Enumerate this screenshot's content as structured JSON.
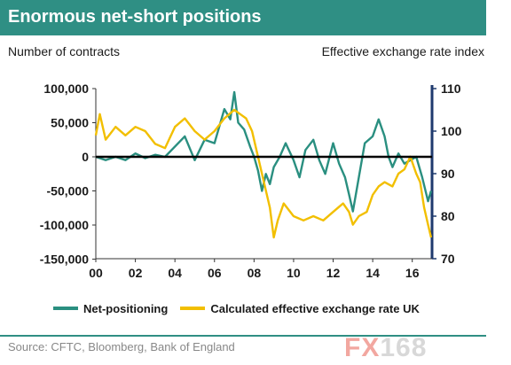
{
  "header": {
    "title": "Enormous net-short positions"
  },
  "chart_data": {
    "type": "line",
    "title": "Enormous net-short positions",
    "left_axis": {
      "label": "Number of contracts",
      "ticks": [
        100000,
        50000,
        0,
        -50000,
        -100000,
        -150000
      ],
      "tick_labels": [
        "100,000",
        "50,000",
        "0",
        "-50,000",
        "-100,000",
        "-150,000"
      ],
      "range": [
        -150000,
        110000
      ]
    },
    "right_axis": {
      "label": "Effective exchange rate index",
      "ticks": [
        110,
        100,
        90,
        80,
        70
      ],
      "tick_labels": [
        "110",
        "100",
        "90",
        "80",
        "70"
      ],
      "range": [
        70,
        110
      ]
    },
    "x_axis": {
      "tick_labels": [
        "00",
        "02",
        "04",
        "06",
        "08",
        "10",
        "12",
        "14",
        "16"
      ],
      "tick_years": [
        2000,
        2002,
        2004,
        2006,
        2008,
        2010,
        2012,
        2014,
        2016
      ],
      "range": [
        2000,
        2017
      ]
    },
    "zero_line": true,
    "grid": false,
    "series": [
      {
        "name": "Net-positioning",
        "axis": "left",
        "color": "#2a8f80",
        "points": [
          [
            2000.0,
            0
          ],
          [
            2000.5,
            -5000
          ],
          [
            2001.0,
            0
          ],
          [
            2001.5,
            -5000
          ],
          [
            2002.0,
            5000
          ],
          [
            2002.5,
            -2000
          ],
          [
            2003.0,
            3000
          ],
          [
            2003.5,
            0
          ],
          [
            2004.0,
            15000
          ],
          [
            2004.5,
            30000
          ],
          [
            2005.0,
            -5000
          ],
          [
            2005.5,
            25000
          ],
          [
            2006.0,
            20000
          ],
          [
            2006.5,
            70000
          ],
          [
            2006.8,
            55000
          ],
          [
            2007.0,
            95000
          ],
          [
            2007.2,
            50000
          ],
          [
            2007.5,
            40000
          ],
          [
            2007.8,
            15000
          ],
          [
            2008.0,
            0
          ],
          [
            2008.2,
            -20000
          ],
          [
            2008.4,
            -50000
          ],
          [
            2008.6,
            -25000
          ],
          [
            2008.8,
            -40000
          ],
          [
            2009.0,
            -15000
          ],
          [
            2009.3,
            0
          ],
          [
            2009.6,
            20000
          ],
          [
            2010.0,
            -5000
          ],
          [
            2010.3,
            -30000
          ],
          [
            2010.6,
            10000
          ],
          [
            2011.0,
            25000
          ],
          [
            2011.3,
            -5000
          ],
          [
            2011.6,
            -25000
          ],
          [
            2012.0,
            20000
          ],
          [
            2012.3,
            -10000
          ],
          [
            2012.6,
            -30000
          ],
          [
            2012.8,
            -55000
          ],
          [
            2013.0,
            -80000
          ],
          [
            2013.3,
            -30000
          ],
          [
            2013.6,
            20000
          ],
          [
            2014.0,
            30000
          ],
          [
            2014.3,
            55000
          ],
          [
            2014.6,
            30000
          ],
          [
            2014.8,
            0
          ],
          [
            2015.0,
            -15000
          ],
          [
            2015.3,
            5000
          ],
          [
            2015.6,
            -10000
          ],
          [
            2015.9,
            -5000
          ],
          [
            2016.2,
            0
          ],
          [
            2016.5,
            -30000
          ],
          [
            2016.8,
            -65000
          ],
          [
            2016.95,
            -50000
          ]
        ]
      },
      {
        "name": "Calculated effective exchange rate UK",
        "axis": "right",
        "color": "#f2bf00",
        "points": [
          [
            2000.0,
            99
          ],
          [
            2000.2,
            104
          ],
          [
            2000.5,
            98
          ],
          [
            2001.0,
            101
          ],
          [
            2001.5,
            99
          ],
          [
            2002.0,
            101
          ],
          [
            2002.5,
            100
          ],
          [
            2003.0,
            97
          ],
          [
            2003.5,
            96
          ],
          [
            2004.0,
            101
          ],
          [
            2004.5,
            103
          ],
          [
            2005.0,
            100
          ],
          [
            2005.5,
            98
          ],
          [
            2006.0,
            100
          ],
          [
            2006.5,
            103
          ],
          [
            2007.0,
            105
          ],
          [
            2007.3,
            104
          ],
          [
            2007.6,
            103
          ],
          [
            2007.9,
            100
          ],
          [
            2008.2,
            94
          ],
          [
            2008.5,
            88
          ],
          [
            2008.8,
            82
          ],
          [
            2009.0,
            75
          ],
          [
            2009.2,
            79
          ],
          [
            2009.5,
            83
          ],
          [
            2010.0,
            80
          ],
          [
            2010.5,
            79
          ],
          [
            2011.0,
            80
          ],
          [
            2011.5,
            79
          ],
          [
            2012.0,
            81
          ],
          [
            2012.5,
            83
          ],
          [
            2012.8,
            81
          ],
          [
            2013.0,
            78
          ],
          [
            2013.3,
            80
          ],
          [
            2013.7,
            81
          ],
          [
            2014.0,
            85
          ],
          [
            2014.3,
            87
          ],
          [
            2014.6,
            88
          ],
          [
            2015.0,
            87
          ],
          [
            2015.3,
            90
          ],
          [
            2015.6,
            91
          ],
          [
            2015.9,
            94
          ],
          [
            2016.2,
            90
          ],
          [
            2016.4,
            88
          ],
          [
            2016.6,
            82
          ],
          [
            2016.8,
            78
          ],
          [
            2016.95,
            75
          ]
        ]
      }
    ],
    "legend": {
      "position": "bottom",
      "entries": [
        "Net-positioning",
        "Calculated effective exchange rate UK"
      ]
    }
  },
  "footer": {
    "source": "Source: CFTC, Bloomberg, Bank of England",
    "watermark_fx": "FX",
    "watermark_num": "168"
  },
  "colors": {
    "header_bg": "#2f8f84",
    "right_axis": "#1f3a6e",
    "zero_line": "#000000"
  }
}
